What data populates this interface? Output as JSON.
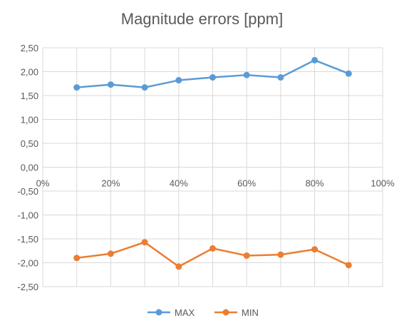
{
  "chart_data": {
    "type": "line",
    "title": "Magnitude errors [ppm]",
    "xlabel": "",
    "ylabel": "",
    "x": [
      "10%",
      "20%",
      "30%",
      "40%",
      "50%",
      "60%",
      "70%",
      "80%",
      "90%"
    ],
    "x_values": [
      10,
      20,
      30,
      40,
      50,
      60,
      70,
      80,
      90
    ],
    "xlim": [
      0,
      100
    ],
    "x_ticks": [
      "0%",
      "20%",
      "40%",
      "60%",
      "80%",
      "100%"
    ],
    "ylim": [
      -2.5,
      2.5
    ],
    "y_ticks": [
      "2,50",
      "2,00",
      "1,50",
      "1,00",
      "0,50",
      "0,00",
      "-0,50",
      "-1,00",
      "-1,50",
      "-2,00",
      "-2,50"
    ],
    "grid": true,
    "legend_position": "bottom",
    "series": [
      {
        "name": "MAX",
        "color": "#5b9bd5",
        "values": [
          1.67,
          1.73,
          1.67,
          1.82,
          1.88,
          1.93,
          1.88,
          2.24,
          1.96
        ]
      },
      {
        "name": "MIN",
        "color": "#ed7d31",
        "values": [
          -1.9,
          -1.81,
          -1.57,
          -2.08,
          -1.7,
          -1.85,
          -1.83,
          -1.72,
          -2.05
        ]
      }
    ]
  }
}
